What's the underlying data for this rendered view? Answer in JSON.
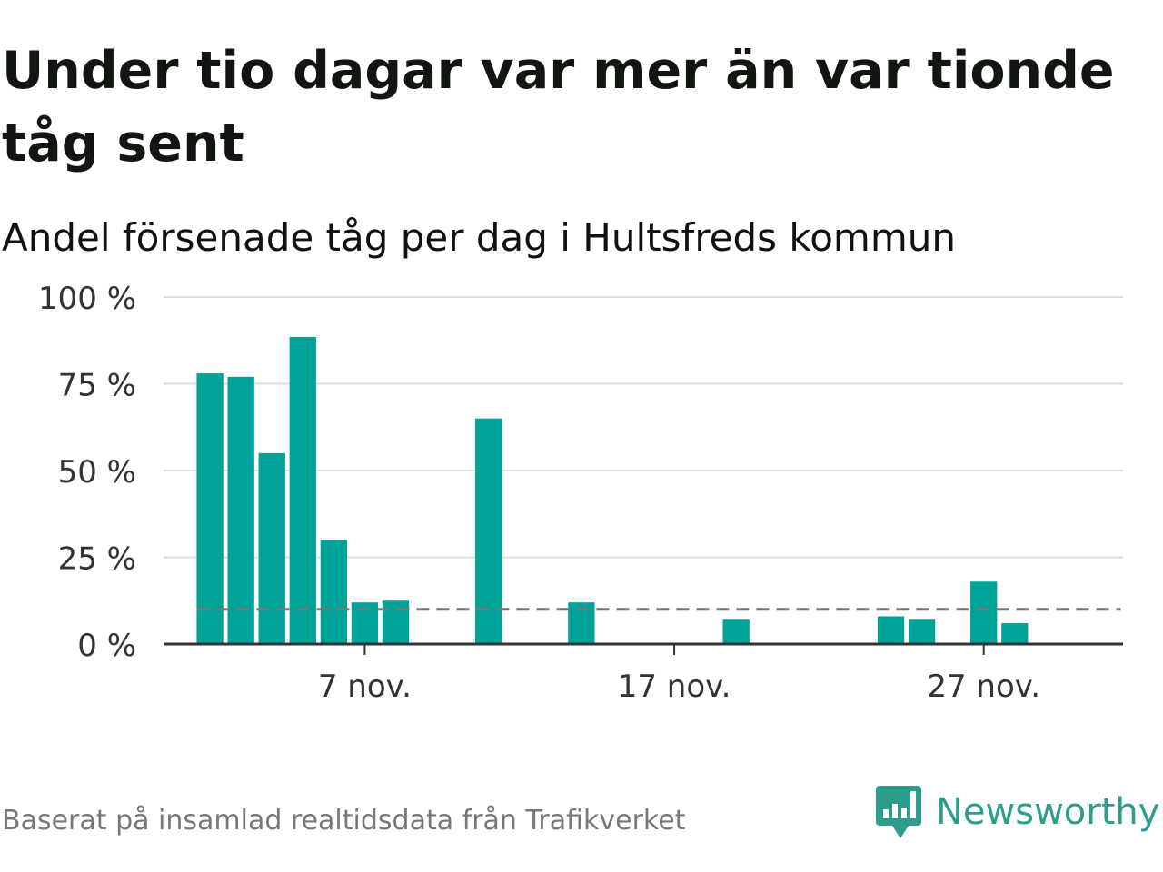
{
  "title": "Under tio dagar var mer än var tionde tåg sent",
  "subtitle": "Andel försenade tåg per dag i Hultsfreds kommun",
  "footer": "Baserat på insamlad realtidsdata från Trafikverket",
  "brand": {
    "name": "Newsworthy",
    "icon": "newsworthy-logo-icon",
    "color": "#2e9e8c"
  },
  "colors": {
    "bar": "#00a398",
    "grid": "#dddddd",
    "axis": "#333333",
    "reference": "#777777"
  },
  "chart_data": {
    "type": "bar",
    "title": "Under tio dagar var mer än var tionde tåg sent",
    "subtitle": "Andel försenade tåg per dag i Hultsfreds kommun",
    "xlabel": "",
    "ylabel": "",
    "ylim": [
      0,
      100
    ],
    "y_ticks": [
      0,
      25,
      50,
      75,
      100
    ],
    "y_tick_labels": [
      "0 %",
      "25 %",
      "50 %",
      "75 %",
      "100 %"
    ],
    "x_tick_labels": [
      {
        "day": 7,
        "label": "7 nov."
      },
      {
        "day": 17,
        "label": "17 nov."
      },
      {
        "day": 27,
        "label": "27 nov."
      }
    ],
    "day_range": [
      0.5,
      31.5
    ],
    "days": [
      2,
      3,
      4,
      5,
      6,
      7,
      8,
      11,
      14,
      17,
      19,
      24,
      25,
      27,
      28
    ],
    "values": [
      78,
      77,
      55,
      88.5,
      30,
      12,
      12.5,
      65,
      12,
      0,
      7,
      8,
      7,
      18,
      6
    ],
    "reference_line": {
      "value": 10,
      "from_day": 2,
      "to_day": 31,
      "style": "dashed"
    },
    "grid": true,
    "legend": "none"
  }
}
